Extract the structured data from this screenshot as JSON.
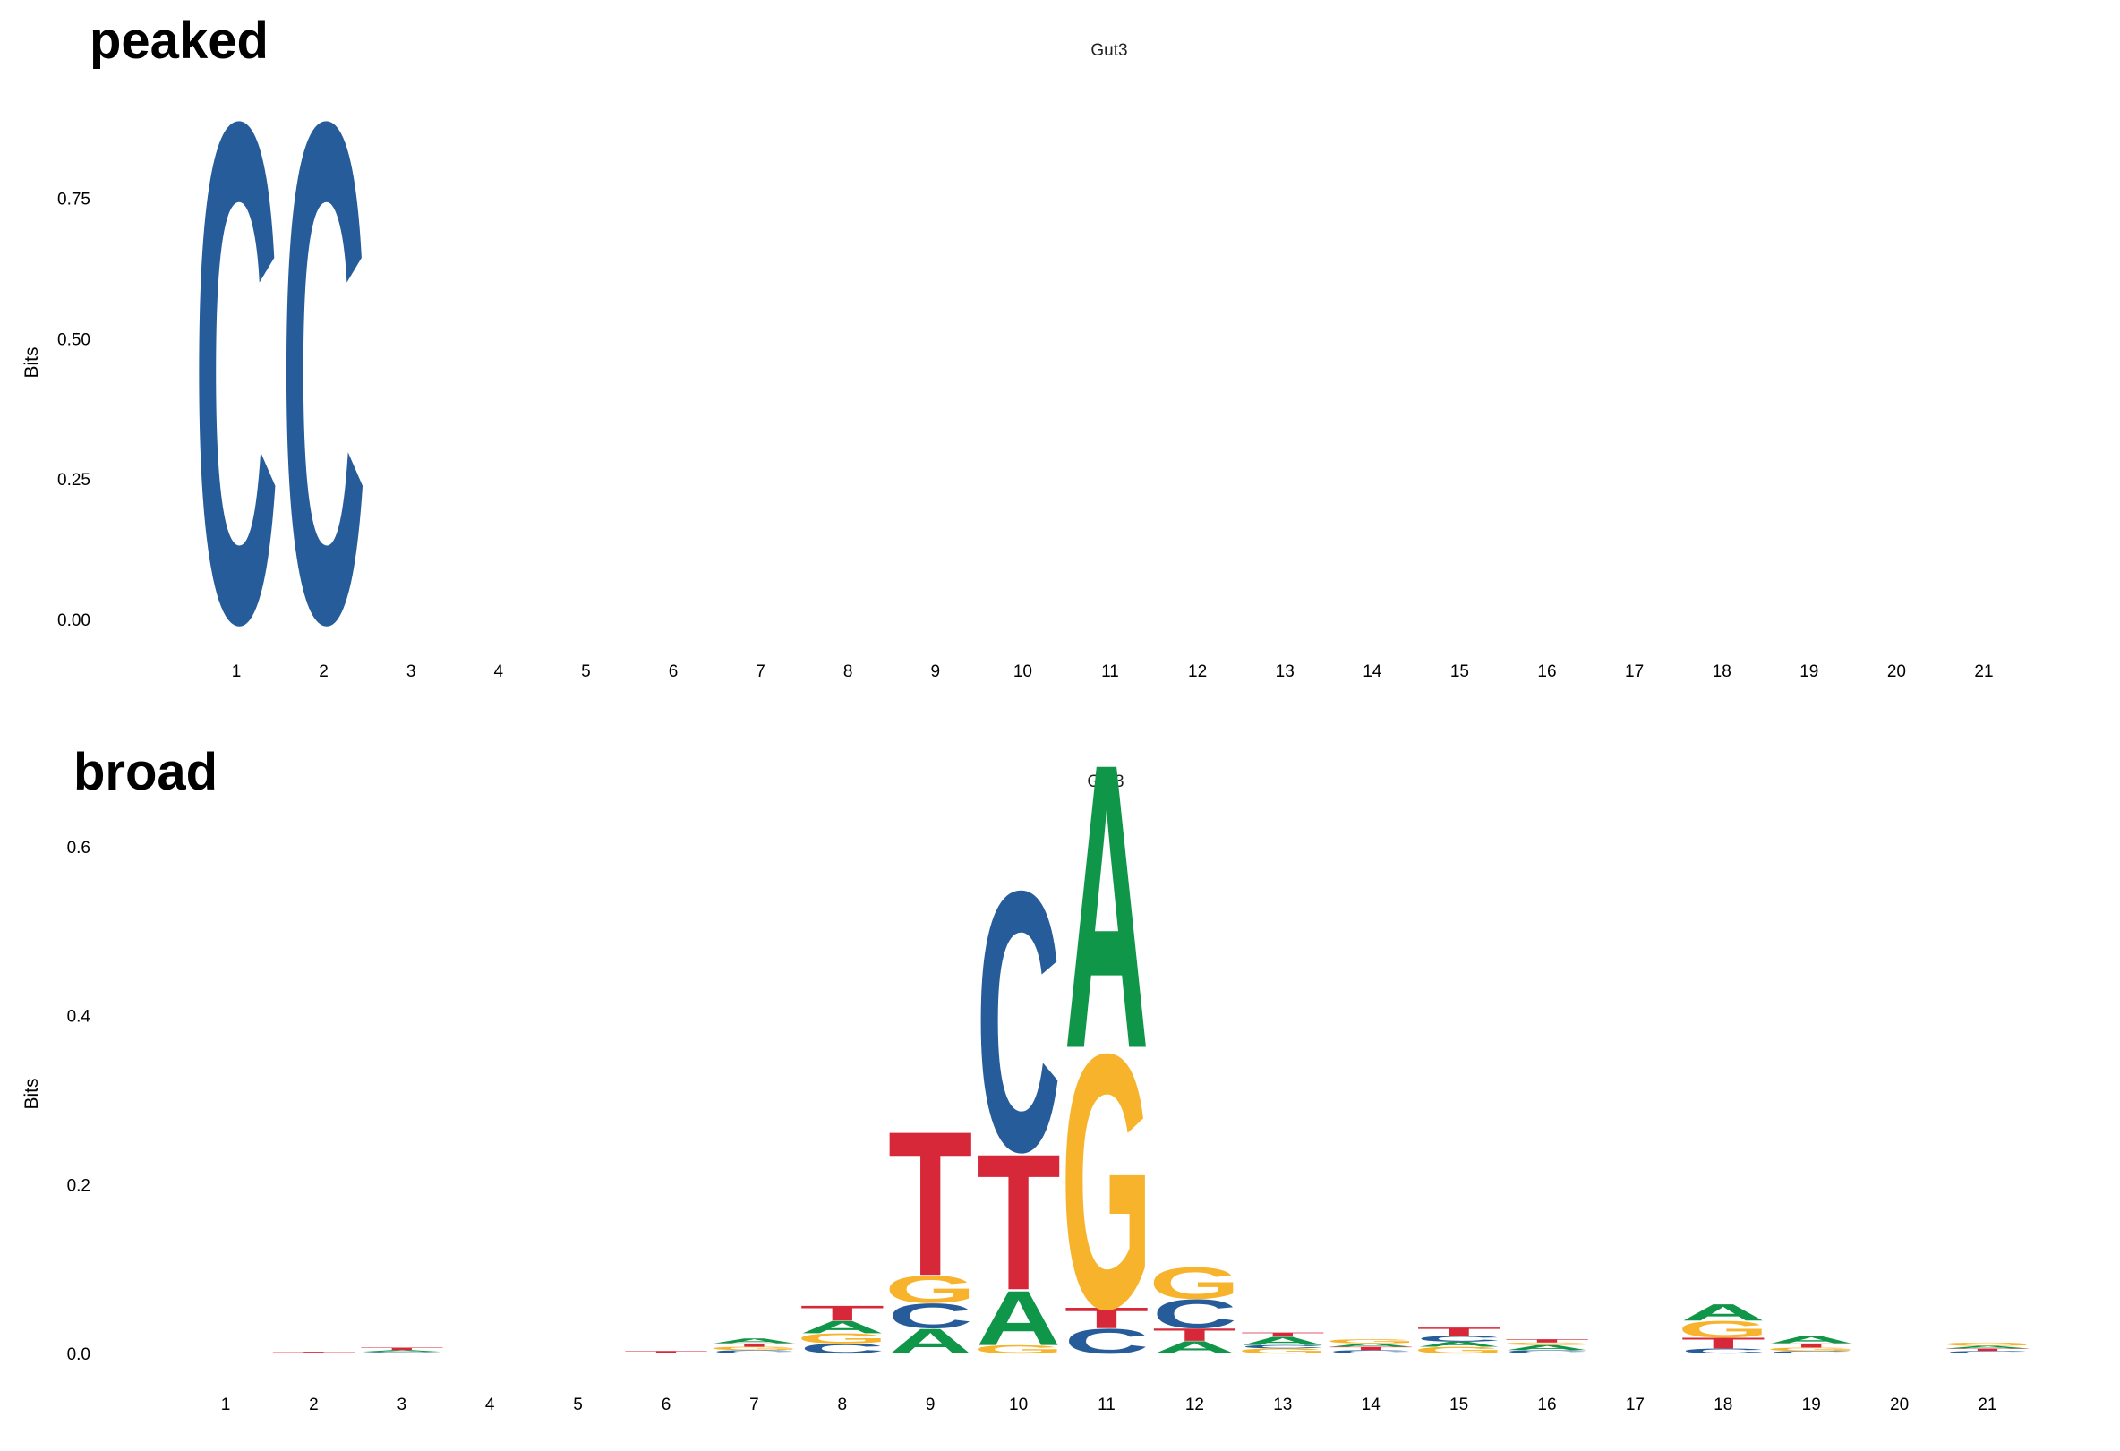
{
  "colors": {
    "A": "#109648",
    "C": "#255C99",
    "G": "#F7B32B",
    "T": "#D62839"
  },
  "chart_data": [
    {
      "type": "sequence-logo",
      "panel_tag": "peaked",
      "title": "Gut3",
      "ylabel": "Bits",
      "ylim": [
        0,
        0.92
      ],
      "yticks": [
        "0.00",
        "0.25",
        "0.50",
        "0.75"
      ],
      "ytick_values": [
        0,
        0.25,
        0.5,
        0.75
      ],
      "positions": [
        "1",
        "2",
        "3",
        "4",
        "5",
        "6",
        "7",
        "8",
        "9",
        "10",
        "11",
        "12",
        "13",
        "14",
        "15",
        "16",
        "17",
        "18",
        "19",
        "20",
        "21"
      ],
      "stacks": [
        [
          [
            "C",
            0.91
          ]
        ],
        [
          [
            "C",
            0.91
          ]
        ],
        [],
        [],
        [],
        [],
        [],
        [],
        [],
        [],
        [],
        [],
        [],
        [],
        [],
        [],
        [],
        [],
        [],
        [],
        []
      ]
    },
    {
      "type": "sequence-logo",
      "panel_tag": "broad",
      "title": "Gut3",
      "ylabel": "Bits",
      "ylim": [
        0,
        0.62
      ],
      "yticks": [
        "0.0",
        "0.2",
        "0.4",
        "0.6"
      ],
      "ytick_values": [
        0,
        0.2,
        0.4,
        0.6
      ],
      "positions": [
        "1",
        "2",
        "3",
        "4",
        "5",
        "6",
        "7",
        "8",
        "9",
        "10",
        "11",
        "12",
        "13",
        "14",
        "15",
        "16",
        "17",
        "18",
        "19",
        "20",
        "21"
      ],
      "stacks": [
        [],
        [
          [
            "T",
            0.002
          ]
        ],
        [
          [
            "C",
            0.002
          ],
          [
            "A",
            0.002
          ],
          [
            "T",
            0.003
          ]
        ],
        [],
        [],
        [
          [
            "T",
            0.003
          ]
        ],
        [
          [
            "C",
            0.004
          ],
          [
            "G",
            0.004
          ],
          [
            "T",
            0.004
          ],
          [
            "A",
            0.006
          ]
        ],
        [
          [
            "C",
            0.012
          ],
          [
            "G",
            0.012
          ],
          [
            "A",
            0.015
          ],
          [
            "T",
            0.018
          ]
        ],
        [
          [
            "A",
            0.03
          ],
          [
            "C",
            0.03
          ],
          [
            "G",
            0.033
          ],
          [
            "T",
            0.175
          ]
        ],
        [
          [
            "G",
            0.01
          ],
          [
            "A",
            0.066
          ],
          [
            "T",
            0.165
          ],
          [
            "C",
            0.315
          ]
        ],
        [
          [
            "C",
            0.03
          ],
          [
            "T",
            0.025
          ],
          [
            "G",
            0.308
          ],
          [
            "A",
            0.345
          ]
        ],
        [
          [
            "A",
            0.015
          ],
          [
            "T",
            0.015
          ],
          [
            "C",
            0.035
          ],
          [
            "G",
            0.038
          ]
        ],
        [
          [
            "G",
            0.006
          ],
          [
            "C",
            0.004
          ],
          [
            "A",
            0.01
          ],
          [
            "T",
            0.005
          ]
        ],
        [
          [
            "C",
            0.004
          ],
          [
            "T",
            0.004
          ],
          [
            "A",
            0.004
          ],
          [
            "G",
            0.005
          ]
        ],
        [
          [
            "G",
            0.008
          ],
          [
            "A",
            0.006
          ],
          [
            "C",
            0.007
          ],
          [
            "T",
            0.01
          ]
        ],
        [
          [
            "C",
            0.004
          ],
          [
            "A",
            0.006
          ],
          [
            "G",
            0.003
          ],
          [
            "T",
            0.004
          ]
        ],
        [],
        [
          [
            "C",
            0.006
          ],
          [
            "T",
            0.013
          ],
          [
            "G",
            0.02
          ],
          [
            "A",
            0.02
          ]
        ],
        [
          [
            "C",
            0.003
          ],
          [
            "G",
            0.004
          ],
          [
            "T",
            0.005
          ],
          [
            "A",
            0.009
          ]
        ],
        [],
        [
          [
            "C",
            0.003
          ],
          [
            "T",
            0.003
          ],
          [
            "A",
            0.003
          ],
          [
            "G",
            0.004
          ]
        ]
      ]
    }
  ]
}
